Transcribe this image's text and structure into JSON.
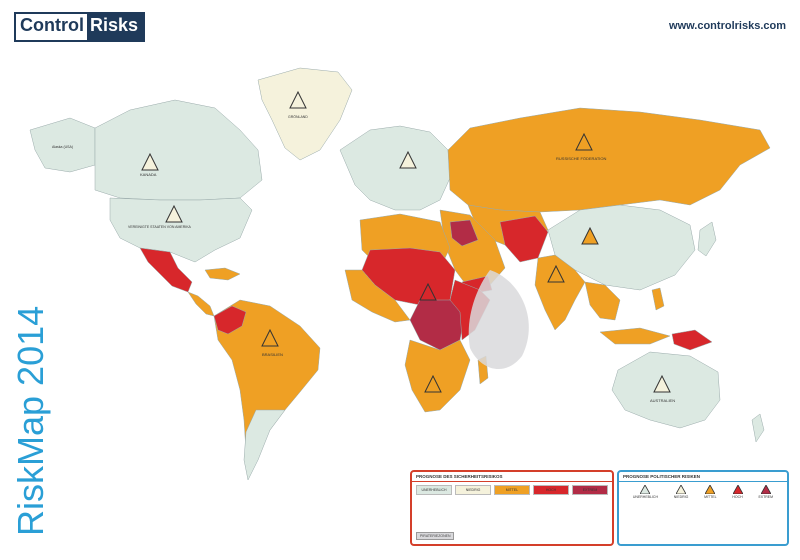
{
  "brand": {
    "part1": "Control",
    "part2": "Risks"
  },
  "url": "www.controlrisks.com",
  "title": {
    "name": "RiskMap",
    "year": "2014"
  },
  "colors": {
    "ocean": "#ffffff",
    "insignificant": "#dce9e2",
    "low": "#f5f2dc",
    "medium": "#efa024",
    "high": "#d7272b",
    "extreme": "#b22c46",
    "piracy": "#d9d9dc"
  },
  "map_labels": {
    "russia": "RUSSISCHE FÖDERATION",
    "brazil": "BRASILIEN",
    "australia": "AUSTRALIEN",
    "canada": "KANADA",
    "usa": "VEREINIGTE STAATEN VON AMERIKA",
    "greenland": "GRÖNLAND",
    "alaska": "Alaska (USA)"
  },
  "legend_security": {
    "heading": "PROGNOSE DES SICHERHEITSRISIKOS",
    "levels": [
      "UNERHEBLICH",
      "NIEDRIG",
      "MITTEL",
      "HOCH",
      "EXTREM"
    ],
    "piracy": "PIRATERIEZONEN"
  },
  "legend_political": {
    "heading": "PROGNOSE POLITISCHER RISIKEN",
    "levels": [
      "UNERHEBLICH",
      "NIEDRIG",
      "MITTEL",
      "HOCH",
      "EXTREM"
    ]
  }
}
